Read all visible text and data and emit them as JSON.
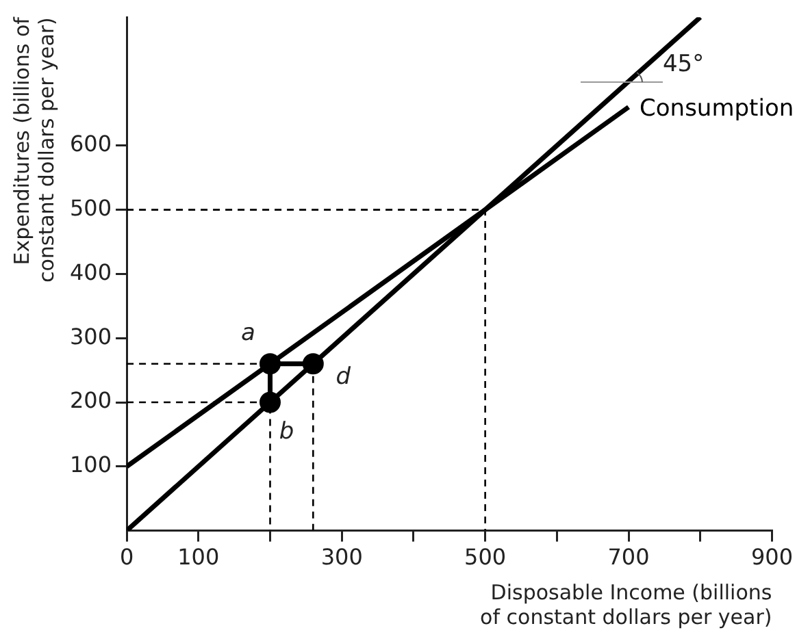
{
  "chart_data": {
    "type": "line",
    "xlabel": "Disposable Income (billions\nof constant dollars per year)",
    "ylabel": "Expenditures (billions of\nconstant dollars per year)",
    "xlim": [
      0,
      900
    ],
    "ylim": [
      0,
      800
    ],
    "xticks": [
      0,
      100,
      {
        "value": 200,
        "label": null
      },
      300,
      {
        "value": 400,
        "label": null
      },
      500,
      {
        "value": 600,
        "label": null
      },
      700,
      {
        "value": 800,
        "label": null
      },
      900
    ],
    "yticks": [
      100,
      200,
      300,
      400,
      500,
      600
    ],
    "series": [
      {
        "color": "#000000",
        "x": [
          0,
          800
        ],
        "values": [
          0,
          800
        ]
      },
      {
        "name": "Consumption",
        "color": "#000000",
        "x": [
          0,
          700
        ],
        "values": [
          100,
          660
        ]
      },
      {
        "color": "#000000",
        "x": [
          0,
          500,
          500
        ],
        "values": [
          500,
          500,
          0
        ],
        "line_style": "dashed"
      },
      {
        "color": "#000000",
        "x": [
          0,
          200
        ],
        "values": [
          260,
          260
        ],
        "line_style": "dashed"
      },
      {
        "color": "#000000",
        "x": [
          0,
          200,
          200
        ],
        "values": [
          200,
          200,
          0
        ],
        "line_style": "dashed"
      },
      {
        "color": "#000000",
        "x": [
          260,
          260
        ],
        "values": [
          260,
          0
        ],
        "line_style": "dashed"
      },
      {
        "color": "#000000",
        "x": [
          260,
          200,
          200
        ],
        "values": [
          260,
          260,
          200
        ]
      },
      {
        "type": "scatter",
        "color": "#000000",
        "x": [
          200,
          200,
          260
        ],
        "values": [
          260,
          200,
          260
        ],
        "marker": "circle"
      }
    ],
    "annotations": [
      {
        "text": "45°",
        "x": 700,
        "y": 700
      },
      {
        "text": "a",
        "x": 200,
        "y": 260
      },
      {
        "text": "b",
        "x": 200,
        "y": 200
      },
      {
        "text": "d",
        "x": 260,
        "y": 260
      }
    ],
    "grid": false,
    "legend": false,
    "line_style": "solid"
  }
}
